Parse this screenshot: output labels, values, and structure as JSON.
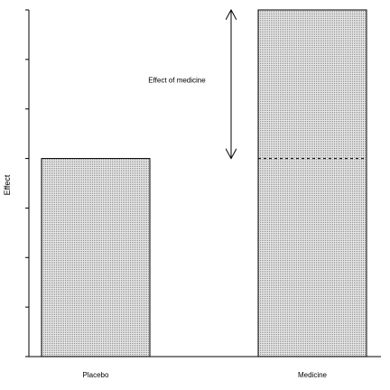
{
  "chart_data": {
    "type": "bar",
    "ylabel": "Effect",
    "xlabel": "",
    "categories": [
      "Placebo",
      "Medicine"
    ],
    "values": [
      4,
      7
    ],
    "ylim": [
      0,
      7
    ],
    "yticks": [
      0,
      1,
      2,
      3,
      4,
      5,
      6,
      7
    ],
    "show_ytick_labels": false,
    "bar_fill": "#d3d3d3",
    "bar_stroke": "#000000",
    "grid": false,
    "annotations": [
      {
        "type": "double-arrow",
        "category": "Medicine",
        "from": 4,
        "to": 7,
        "label": "Effect of medicine"
      },
      {
        "type": "dashed-line",
        "category": "Medicine",
        "value": 4
      }
    ]
  }
}
